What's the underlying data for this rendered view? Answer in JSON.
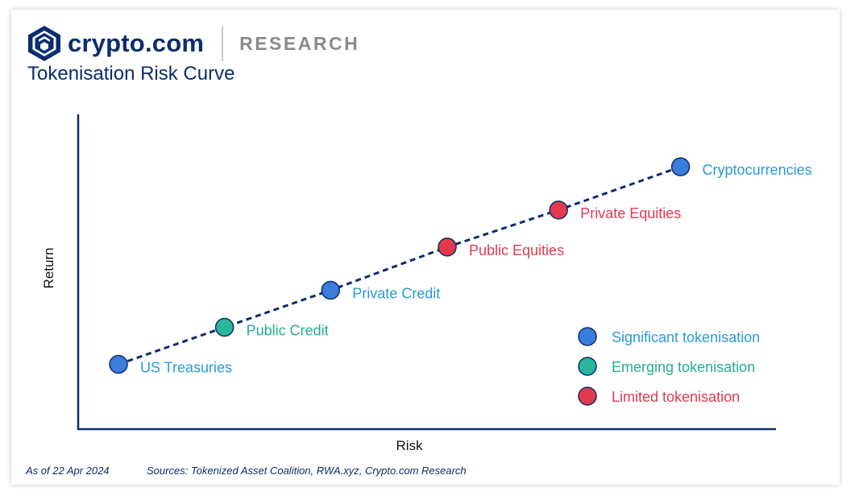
{
  "header": {
    "brand_name": "crypto.com",
    "brand_section": "RESEARCH",
    "title": "Tokenisation Risk Curve"
  },
  "footer": {
    "date": "As of 22 Apr 2024",
    "sources": "Sources:  Tokenized Asset Coalition, RWA.xyz, Crypto.com Research"
  },
  "colors": {
    "significant": "#3b7ddd",
    "emerging": "#2bb59a",
    "limited": "#e2394f",
    "label_significant": "#2a9ad9",
    "label_emerging": "#22ad92",
    "label_limited": "#e2394f",
    "axis": "#0b2d6b",
    "line": "#0b2d6b"
  },
  "chart_data": {
    "type": "scatter",
    "title": "",
    "xlabel": "Risk",
    "ylabel": "Return",
    "grid": false,
    "legend_position": "bottom-right",
    "categories_legend": [
      {
        "key": "significant",
        "label": "Significant tokenisation"
      },
      {
        "key": "emerging",
        "label": "Emerging tokenisation"
      },
      {
        "key": "limited",
        "label": "Limited tokenisation"
      }
    ],
    "points": [
      {
        "label": "US Treasuries",
        "risk": 1.0,
        "return": 1.0,
        "category": "significant"
      },
      {
        "label": "Public Credit",
        "risk": 2.0,
        "return": 1.6,
        "category": "emerging"
      },
      {
        "label": "Private Credit",
        "risk": 3.0,
        "return": 2.2,
        "category": "significant"
      },
      {
        "label": "Public Equities",
        "risk": 4.1,
        "return": 2.9,
        "category": "limited"
      },
      {
        "label": "Private Equities",
        "risk": 5.15,
        "return": 3.5,
        "category": "limited"
      },
      {
        "label": "Cryptocurrencies",
        "risk": 6.3,
        "return": 4.2,
        "category": "significant"
      }
    ],
    "xlim": [
      0.62,
      7.2
    ],
    "ylim": [
      -0.05,
      5.05
    ],
    "trend_line": "dashed"
  }
}
